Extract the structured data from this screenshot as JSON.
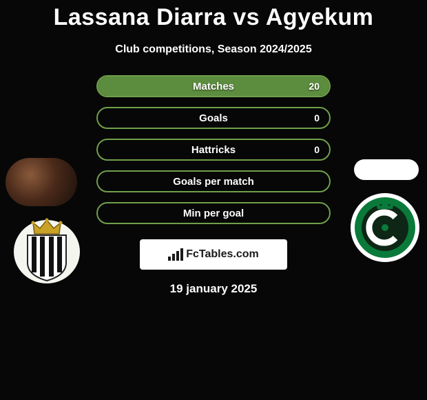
{
  "title": "Lassana Diarra vs Agyekum",
  "subtitle": "Club competitions, Season 2024/2025",
  "date": "19 january 2025",
  "colors": {
    "background": "#070707",
    "pill_border": "#6fa04a",
    "pill_fill": "#5c8c3e",
    "text": "#ffffff",
    "club2_green": "#0a7a3a",
    "club2_dark": "#0d2616",
    "club1_shield_white": "#f5f5f0",
    "club1_crown_gold": "#c9a227",
    "fctables_bg": "#ffffff",
    "fctables_text": "#1a1a1a"
  },
  "stats": [
    {
      "label": "Matches",
      "value": "20",
      "fill_pct": 100
    },
    {
      "label": "Goals",
      "value": "0",
      "fill_pct": 0
    },
    {
      "label": "Hattricks",
      "value": "0",
      "fill_pct": 0
    },
    {
      "label": "Goals per match",
      "value": "",
      "fill_pct": 0
    },
    {
      "label": "Min per goal",
      "value": "",
      "fill_pct": 0
    }
  ],
  "fctables_label": "FcTables.com",
  "player1_name": "Lassana Diarra",
  "player2_name": "Agyekum",
  "club1_name": "charleroi",
  "club2_name": "cercle-brugge"
}
